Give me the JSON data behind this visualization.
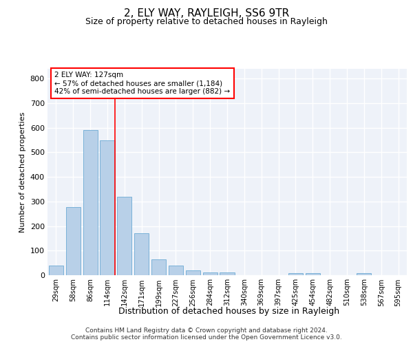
{
  "title": "2, ELY WAY, RAYLEIGH, SS6 9TR",
  "subtitle": "Size of property relative to detached houses in Rayleigh",
  "xlabel": "Distribution of detached houses by size in Rayleigh",
  "ylabel": "Number of detached properties",
  "categories": [
    "29sqm",
    "58sqm",
    "86sqm",
    "114sqm",
    "142sqm",
    "171sqm",
    "199sqm",
    "227sqm",
    "256sqm",
    "284sqm",
    "312sqm",
    "340sqm",
    "369sqm",
    "397sqm",
    "425sqm",
    "454sqm",
    "482sqm",
    "510sqm",
    "538sqm",
    "567sqm",
    "595sqm"
  ],
  "values": [
    38,
    278,
    592,
    550,
    320,
    170,
    65,
    38,
    20,
    12,
    12,
    0,
    0,
    0,
    8,
    8,
    0,
    0,
    8,
    0,
    0
  ],
  "bar_color": "#b8d0e8",
  "bar_edge_color": "#6aaad4",
  "red_line_label": "2 ELY WAY: 127sqm",
  "annotation_line1": "← 57% of detached houses are smaller (1,184)",
  "annotation_line2": "42% of semi-detached houses are larger (882) →",
  "red_line_index": 3.46,
  "ylim": [
    0,
    840
  ],
  "yticks": [
    0,
    100,
    200,
    300,
    400,
    500,
    600,
    700,
    800
  ],
  "background_color": "#eef2f9",
  "grid_color": "#ffffff",
  "title_fontsize": 11,
  "subtitle_fontsize": 9,
  "footer_line1": "Contains HM Land Registry data © Crown copyright and database right 2024.",
  "footer_line2": "Contains public sector information licensed under the Open Government Licence v3.0."
}
